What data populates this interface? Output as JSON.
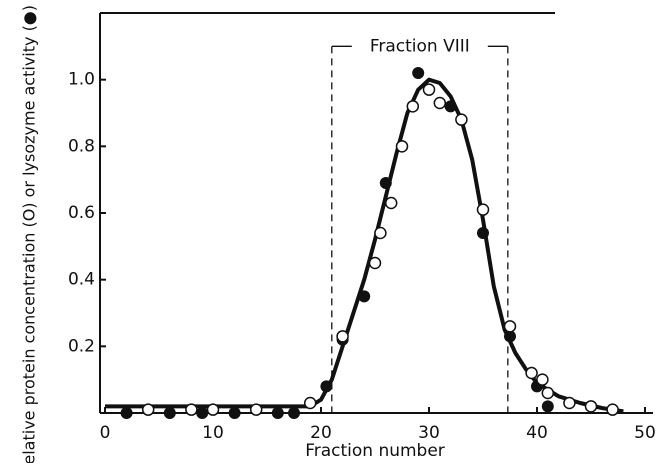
{
  "chart_data": {
    "type": "scatter",
    "xlabel": "Fraction number",
    "ylabel": "Relative protein concentration (O) or lysozyme activity (●)",
    "xlim": [
      0,
      50
    ],
    "ylim": [
      0,
      1.2
    ],
    "xticks": [
      0,
      10,
      20,
      30,
      40,
      50
    ],
    "yticks": [
      0.2,
      0.4,
      0.6,
      0.8,
      {
        "value": 1,
        "label": "1.0"
      }
    ],
    "series": [
      {
        "marker": "filled",
        "color": "#111111",
        "x": [
          2,
          6,
          9,
          12,
          16,
          17.5,
          20.5,
          22,
          24,
          26,
          29,
          32,
          35,
          37.5,
          40,
          41
        ],
        "values": [
          0,
          0,
          0,
          0,
          0,
          0,
          0.08,
          0.22,
          0.35,
          0.69,
          1.02,
          0.92,
          0.54,
          0.23,
          0.08,
          0.02
        ]
      },
      {
        "marker": "open",
        "color": "#111111",
        "x": [
          4,
          8,
          10,
          14,
          19,
          22,
          25,
          25.5,
          26.5,
          27.5,
          28.5,
          30,
          31,
          33,
          35,
          37.5,
          39.5,
          40.5,
          41,
          43,
          45,
          47
        ],
        "values": [
          0.01,
          0.01,
          0.01,
          0.01,
          0.03,
          0.23,
          0.45,
          0.54,
          0.63,
          0.8,
          0.92,
          0.97,
          0.93,
          0.88,
          0.61,
          0.26,
          0.12,
          0.1,
          0.06,
          0.03,
          0.02,
          0.01
        ]
      },
      {
        "marker": "line",
        "color": "#111111",
        "x": [
          0,
          19,
          20,
          21,
          22,
          23,
          24,
          25,
          26,
          27,
          28,
          29,
          30,
          31,
          32,
          33,
          34,
          35,
          36,
          37,
          38,
          39,
          40,
          42,
          44,
          46,
          48
        ],
        "values": [
          0.02,
          0.02,
          0.04,
          0.1,
          0.2,
          0.3,
          0.4,
          0.52,
          0.65,
          0.78,
          0.9,
          0.97,
          1.0,
          0.99,
          0.95,
          0.88,
          0.76,
          0.58,
          0.38,
          0.25,
          0.18,
          0.13,
          0.09,
          0.05,
          0.03,
          0.015,
          0.005
        ]
      }
    ],
    "annotation": {
      "text": "Fraction VIII",
      "x": [
        21,
        37.3
      ],
      "y": 1.1
    }
  }
}
